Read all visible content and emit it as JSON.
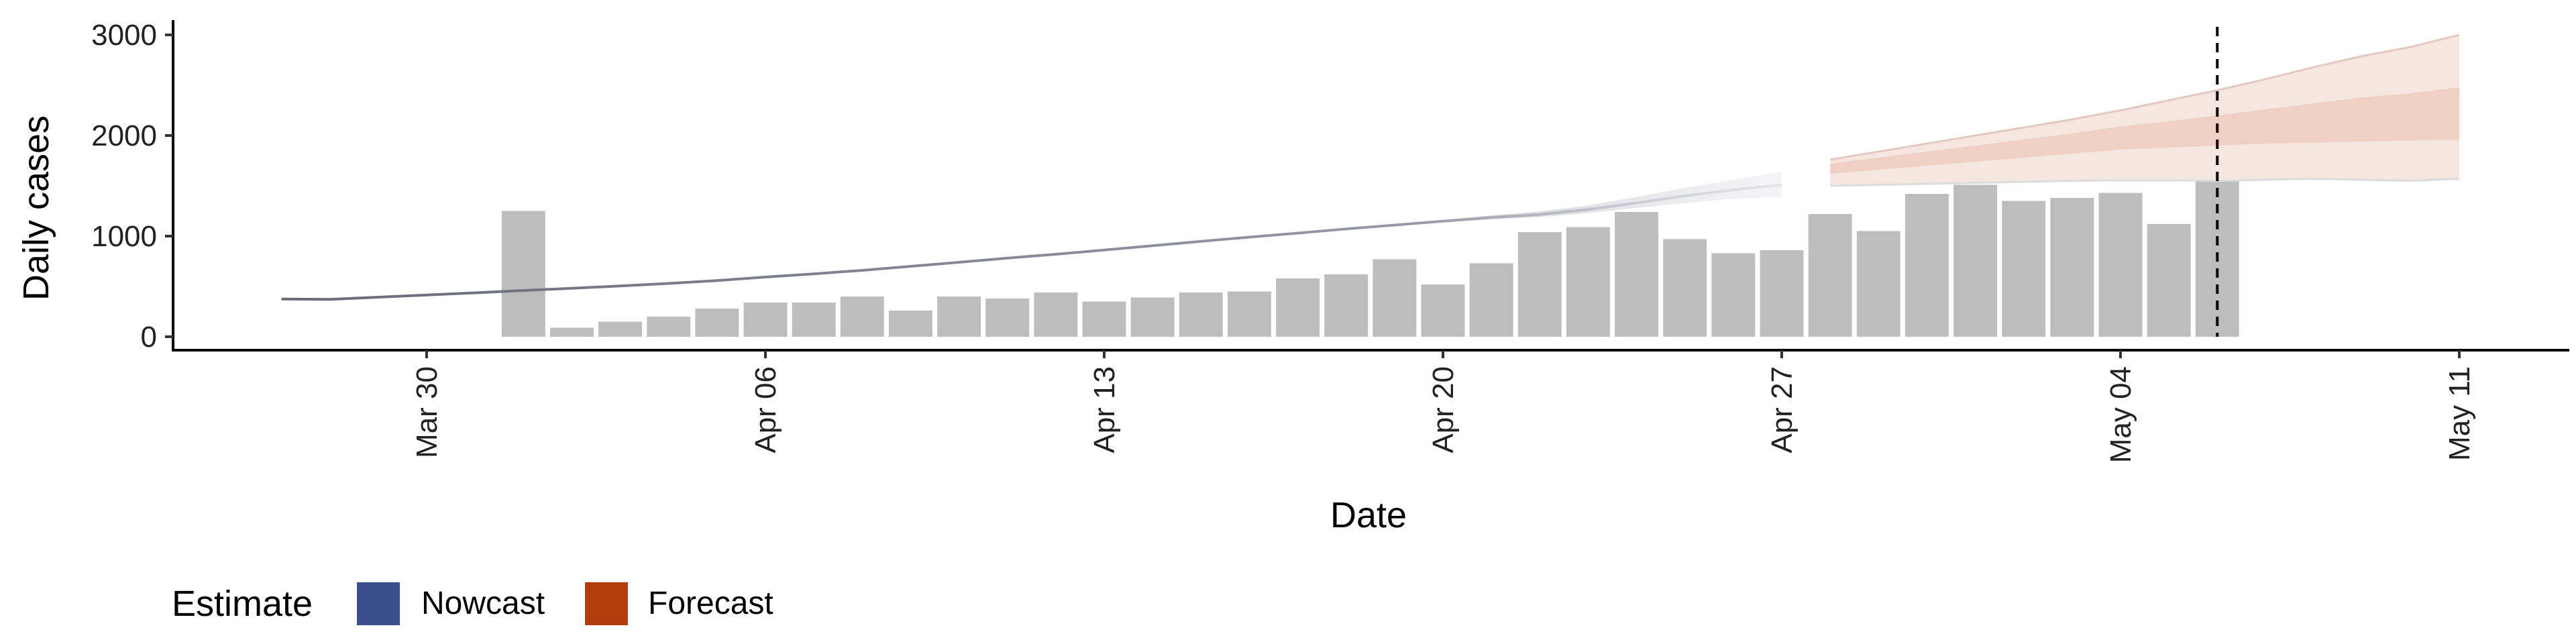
{
  "chart_data": {
    "type": "bar",
    "xlabel": "Date",
    "ylabel": "Daily cases",
    "ylim": [
      0,
      3000
    ],
    "y_ticks": [
      0,
      1000,
      2000,
      3000
    ],
    "x_ticks": [
      "2020-03-30",
      "2020-04-06",
      "2020-04-13",
      "2020-04-20",
      "2020-04-27",
      "2020-05-04",
      "2020-05-11"
    ],
    "x_tick_labels": [
      "Mar 30",
      "Apr 06",
      "Apr 13",
      "Apr 20",
      "Apr 27",
      "May 04",
      "May 11"
    ],
    "xlim": [
      "2020-03-23",
      "2020-05-13"
    ],
    "date_cutoff": "2020-05-06",
    "reported_cases": {
      "dates": [
        "2020-04-01",
        "2020-04-02",
        "2020-04-03",
        "2020-04-04",
        "2020-04-05",
        "2020-04-06",
        "2020-04-07",
        "2020-04-08",
        "2020-04-09",
        "2020-04-10",
        "2020-04-11",
        "2020-04-12",
        "2020-04-13",
        "2020-04-14",
        "2020-04-15",
        "2020-04-16",
        "2020-04-17",
        "2020-04-18",
        "2020-04-19",
        "2020-04-20",
        "2020-04-21",
        "2020-04-22",
        "2020-04-23",
        "2020-04-24",
        "2020-04-25",
        "2020-04-26",
        "2020-04-27",
        "2020-04-28",
        "2020-04-29",
        "2020-04-30",
        "2020-05-01",
        "2020-05-02",
        "2020-05-03",
        "2020-05-04",
        "2020-05-05",
        "2020-05-06"
      ],
      "values": [
        1250,
        90,
        150,
        200,
        280,
        340,
        340,
        400,
        260,
        400,
        380,
        440,
        350,
        390,
        440,
        450,
        580,
        620,
        770,
        520,
        730,
        1040,
        1090,
        1240,
        970,
        830,
        860,
        1220,
        1050,
        1420,
        1510,
        1350,
        1380,
        1430,
        1120,
        1610
      ]
    },
    "nowcast": {
      "name": "Nowcast",
      "color": "#3a4f8b",
      "dates": [
        "2020-03-27",
        "2020-03-28",
        "2020-03-29",
        "2020-03-30",
        "2020-03-31",
        "2020-04-01",
        "2020-04-02",
        "2020-04-03",
        "2020-04-04",
        "2020-04-05",
        "2020-04-06",
        "2020-04-07",
        "2020-04-08",
        "2020-04-09",
        "2020-04-10",
        "2020-04-11",
        "2020-04-12",
        "2020-04-13",
        "2020-04-14",
        "2020-04-15",
        "2020-04-16",
        "2020-04-17",
        "2020-04-18",
        "2020-04-19",
        "2020-04-20",
        "2020-04-21",
        "2020-04-22",
        "2020-04-23",
        "2020-04-24",
        "2020-04-25",
        "2020-04-26",
        "2020-04-27"
      ],
      "median": [
        375,
        372,
        393,
        415,
        437,
        460,
        482,
        505,
        530,
        558,
        593,
        625,
        660,
        700,
        740,
        782,
        820,
        862,
        905,
        948,
        990,
        1030,
        1072,
        1110,
        1148,
        1185,
        1215,
        1265,
        1330,
        1400,
        1460,
        1510
      ],
      "lower": [
        365,
        362,
        383,
        405,
        427,
        450,
        472,
        495,
        520,
        548,
        583,
        615,
        650,
        690,
        730,
        772,
        810,
        852,
        895,
        938,
        980,
        1020,
        1062,
        1100,
        1136,
        1168,
        1190,
        1230,
        1280,
        1330,
        1370,
        1390
      ],
      "upper": [
        385,
        382,
        403,
        425,
        447,
        470,
        492,
        515,
        540,
        568,
        603,
        635,
        670,
        710,
        750,
        792,
        830,
        872,
        915,
        958,
        1000,
        1040,
        1082,
        1120,
        1162,
        1205,
        1245,
        1305,
        1390,
        1480,
        1560,
        1640
      ]
    },
    "forecast": {
      "name": "Forecast",
      "color": "#b33b0c",
      "dates": [
        "2020-04-28",
        "2020-04-29",
        "2020-04-30",
        "2020-05-01",
        "2020-05-02",
        "2020-05-03",
        "2020-05-04",
        "2020-05-05",
        "2020-05-06",
        "2020-05-07",
        "2020-05-08",
        "2020-05-09",
        "2020-05-10",
        "2020-05-11"
      ],
      "lower90": [
        1500,
        1510,
        1520,
        1530,
        1540,
        1550,
        1555,
        1555,
        1550,
        1560,
        1570,
        1560,
        1550,
        1570
      ],
      "lower50": [
        1620,
        1660,
        1700,
        1740,
        1780,
        1820,
        1860,
        1880,
        1900,
        1920,
        1930,
        1940,
        1950,
        1960
      ],
      "upper50": [
        1720,
        1780,
        1840,
        1900,
        1960,
        2020,
        2090,
        2140,
        2200,
        2260,
        2320,
        2380,
        2420,
        2480
      ],
      "upper90": [
        1760,
        1840,
        1920,
        2000,
        2080,
        2160,
        2250,
        2350,
        2450,
        2560,
        2680,
        2790,
        2880,
        3000
      ]
    }
  },
  "legend": {
    "title": "Estimate",
    "items": [
      {
        "label": "Nowcast",
        "color": "#3a4f8b"
      },
      {
        "label": "Forecast",
        "color": "#b33b0c"
      }
    ]
  }
}
